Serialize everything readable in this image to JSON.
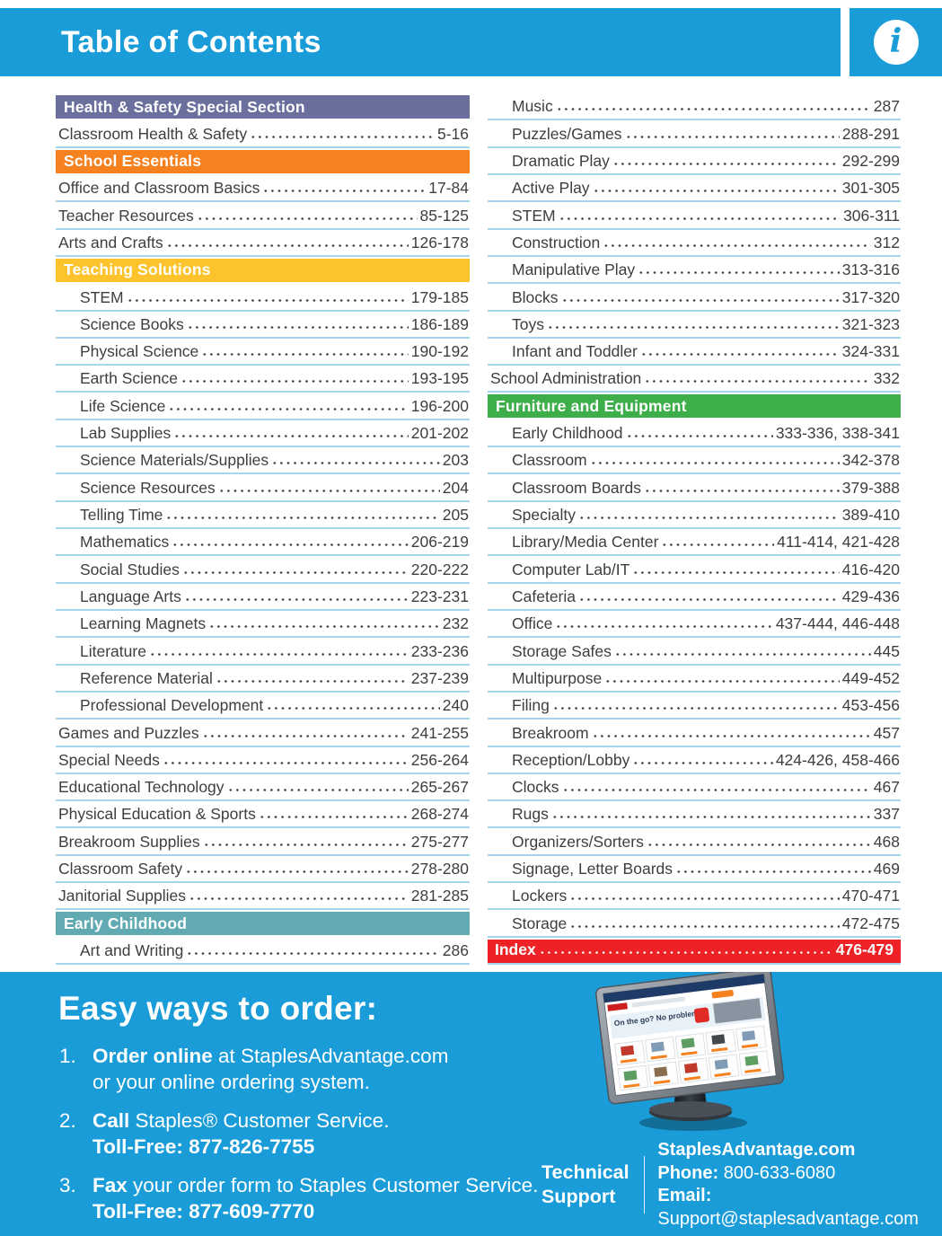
{
  "header": {
    "title": "Table of Contents",
    "info_icon": "i"
  },
  "colors": {
    "brand_blue": "#1a9cd8",
    "purple": "#6b6f9e",
    "orange": "#f5821f",
    "yellow": "#fcc32c",
    "teal": "#61aab2",
    "green": "#3eae4a",
    "red": "#ec2227",
    "entry_text": "#3e3e3e",
    "separator": "#a6d4ec"
  },
  "toc": {
    "left_column": [
      {
        "type": "header",
        "color": "purple",
        "label": "Health & Safety Special Section"
      },
      {
        "type": "entry",
        "label": "Classroom Health & Safety",
        "pages": "5-16",
        "indent": false
      },
      {
        "type": "header",
        "color": "orange",
        "label": "School Essentials"
      },
      {
        "type": "entry",
        "label": "Office and Classroom Basics",
        "pages": "17-84",
        "indent": false
      },
      {
        "type": "entry",
        "label": "Teacher Resources",
        "pages": "85-125",
        "indent": false
      },
      {
        "type": "entry",
        "label": "Arts and Crafts",
        "pages": "126-178",
        "indent": false
      },
      {
        "type": "header",
        "color": "yellow",
        "label": "Teaching Solutions"
      },
      {
        "type": "entry",
        "label": "STEM",
        "pages": "179-185",
        "indent": true
      },
      {
        "type": "entry",
        "label": "Science Books",
        "pages": "186-189",
        "indent": true
      },
      {
        "type": "entry",
        "label": "Physical Science",
        "pages": "190-192",
        "indent": true
      },
      {
        "type": "entry",
        "label": "Earth Science",
        "pages": "193-195",
        "indent": true
      },
      {
        "type": "entry",
        "label": "Life Science",
        "pages": "196-200",
        "indent": true
      },
      {
        "type": "entry",
        "label": "Lab Supplies",
        "pages": "201-202",
        "indent": true
      },
      {
        "type": "entry",
        "label": "Science Materials/Supplies",
        "pages": "203",
        "indent": true
      },
      {
        "type": "entry",
        "label": "Science Resources",
        "pages": "204",
        "indent": true
      },
      {
        "type": "entry",
        "label": "Telling Time",
        "pages": "205",
        "indent": true
      },
      {
        "type": "entry",
        "label": "Mathematics",
        "pages": "206-219",
        "indent": true
      },
      {
        "type": "entry",
        "label": "Social Studies",
        "pages": "220-222",
        "indent": true
      },
      {
        "type": "entry",
        "label": "Language Arts",
        "pages": "223-231",
        "indent": true
      },
      {
        "type": "entry",
        "label": "Learning Magnets",
        "pages": "232",
        "indent": true
      },
      {
        "type": "entry",
        "label": "Literature",
        "pages": "233-236",
        "indent": true
      },
      {
        "type": "entry",
        "label": "Reference Material",
        "pages": "237-239",
        "indent": true
      },
      {
        "type": "entry",
        "label": "Professional Development",
        "pages": "240",
        "indent": true
      },
      {
        "type": "entry",
        "label": "Games and Puzzles",
        "pages": "241-255",
        "indent": false
      },
      {
        "type": "entry",
        "label": "Special Needs",
        "pages": "256-264",
        "indent": false
      },
      {
        "type": "entry",
        "label": "Educational Technology",
        "pages": "265-267",
        "indent": false
      },
      {
        "type": "entry",
        "label": "Physical Education & Sports",
        "pages": "268-274",
        "indent": false
      },
      {
        "type": "entry",
        "label": "Breakroom Supplies",
        "pages": "275-277",
        "indent": false
      },
      {
        "type": "entry",
        "label": "Classroom Safety",
        "pages": "278-280",
        "indent": false
      },
      {
        "type": "entry",
        "label": "Janitorial Supplies",
        "pages": "281-285",
        "indent": false
      },
      {
        "type": "header",
        "color": "teal",
        "label": "Early Childhood"
      },
      {
        "type": "entry",
        "label": "Art and Writing",
        "pages": "286",
        "indent": true
      }
    ],
    "right_column": [
      {
        "type": "entry",
        "label": "Music",
        "pages": "287",
        "indent": true
      },
      {
        "type": "entry",
        "label": "Puzzles/Games",
        "pages": "288-291",
        "indent": true
      },
      {
        "type": "entry",
        "label": "Dramatic Play",
        "pages": "292-299",
        "indent": true
      },
      {
        "type": "entry",
        "label": "Active Play",
        "pages": "301-305",
        "indent": true
      },
      {
        "type": "entry",
        "label": "STEM",
        "pages": "306-311",
        "indent": true
      },
      {
        "type": "entry",
        "label": "Construction",
        "pages": "312",
        "indent": true
      },
      {
        "type": "entry",
        "label": "Manipulative Play",
        "pages": "313-316",
        "indent": true
      },
      {
        "type": "entry",
        "label": "Blocks",
        "pages": "317-320",
        "indent": true
      },
      {
        "type": "entry",
        "label": "Toys",
        "pages": "321-323",
        "indent": true
      },
      {
        "type": "entry",
        "label": "Infant and Toddler",
        "pages": "324-331",
        "indent": true
      },
      {
        "type": "entry",
        "label": "School Administration",
        "pages": "332",
        "indent": false
      },
      {
        "type": "header",
        "color": "green",
        "label": "Furniture and Equipment"
      },
      {
        "type": "entry",
        "label": "Early Childhood",
        "pages": "333-336, 338-341",
        "indent": true
      },
      {
        "type": "entry",
        "label": "Classroom",
        "pages": "342-378",
        "indent": true
      },
      {
        "type": "entry",
        "label": "Classroom Boards",
        "pages": "379-388",
        "indent": true
      },
      {
        "type": "entry",
        "label": "Specialty",
        "pages": "389-410",
        "indent": true
      },
      {
        "type": "entry",
        "label": "Library/Media Center",
        "pages": "411-414, 421-428",
        "indent": true
      },
      {
        "type": "entry",
        "label": "Computer Lab/IT",
        "pages": "416-420",
        "indent": true
      },
      {
        "type": "entry",
        "label": "Cafeteria",
        "pages": "429-436",
        "indent": true
      },
      {
        "type": "entry",
        "label": "Office",
        "pages": "437-444, 446-448",
        "indent": true
      },
      {
        "type": "entry",
        "label": "Storage Safes",
        "pages": "445",
        "indent": true
      },
      {
        "type": "entry",
        "label": "Multipurpose",
        "pages": "449-452",
        "indent": true
      },
      {
        "type": "entry",
        "label": "Filing",
        "pages": "453-456",
        "indent": true
      },
      {
        "type": "entry",
        "label": "Breakroom",
        "pages": "457",
        "indent": true
      },
      {
        "type": "entry",
        "label": "Reception/Lobby",
        "pages": "424-426, 458-466",
        "indent": true
      },
      {
        "type": "entry",
        "label": "Clocks",
        "pages": "467",
        "indent": true
      },
      {
        "type": "entry",
        "label": "Rugs",
        "pages": "337",
        "indent": true
      },
      {
        "type": "entry",
        "label": "Organizers/Sorters",
        "pages": "468",
        "indent": true
      },
      {
        "type": "entry",
        "label": "Signage, Letter Boards",
        "pages": "469",
        "indent": true
      },
      {
        "type": "entry",
        "label": "Lockers",
        "pages": "470-471",
        "indent": true
      },
      {
        "type": "entry",
        "label": "Storage",
        "pages": "472-475",
        "indent": true
      },
      {
        "type": "index",
        "label": "Index",
        "pages": "476-479"
      }
    ]
  },
  "footer": {
    "heading": "Easy ways to order:",
    "steps": [
      {
        "num": "1.",
        "line1": [
          [
            "b",
            "Order online"
          ],
          [
            "r",
            " at StaplesAdvantage.com"
          ]
        ],
        "line2": [
          [
            "r",
            "or your online ordering system."
          ]
        ]
      },
      {
        "num": "2.",
        "line1": [
          [
            "b",
            "Call"
          ],
          [
            "r",
            " Staples® Customer Service."
          ]
        ],
        "line2": [
          [
            "b",
            "Toll-Free: 877-826-7755"
          ]
        ]
      },
      {
        "num": "3.",
        "line1": [
          [
            "b",
            "Fax"
          ],
          [
            "r",
            " your order form to Staples Customer Service."
          ]
        ],
        "line2": [
          [
            "b",
            "Toll-Free: 877-609-7770"
          ]
        ]
      }
    ],
    "monitor": {
      "banner": "On the go? No problem."
    },
    "tech": {
      "label1": "Technical",
      "label2": "Support",
      "site": "StaplesAdvantage.com",
      "phone_label": "Phone:",
      "phone": " 800-633-6080",
      "email_label": "Email:",
      "email": " Support@staplesadvantage.com"
    }
  }
}
